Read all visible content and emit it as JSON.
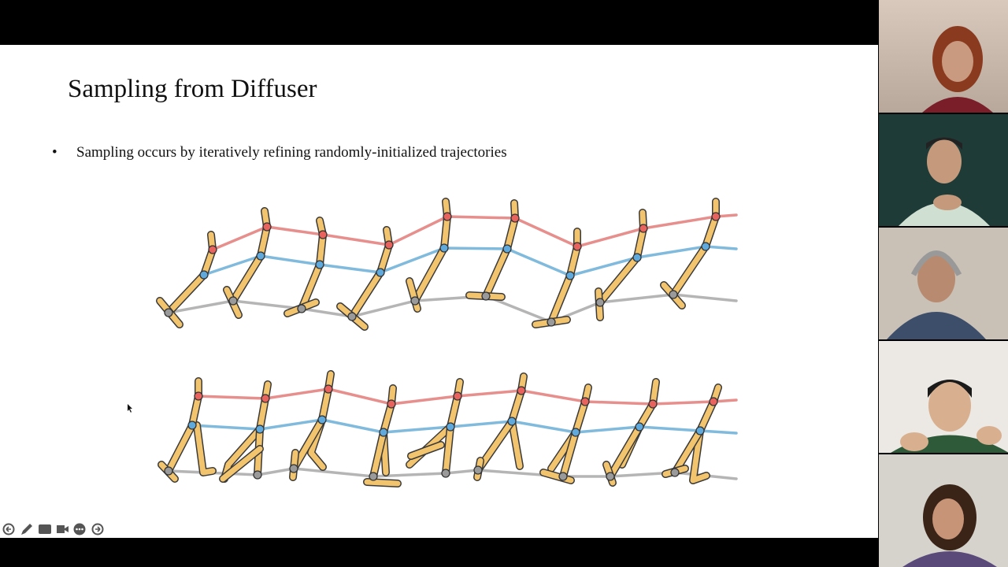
{
  "slide": {
    "title": "Sampling from Diffuser",
    "bullets": [
      "Sampling occurs by iteratively refining randomly-initialized trajectories"
    ]
  }
}
